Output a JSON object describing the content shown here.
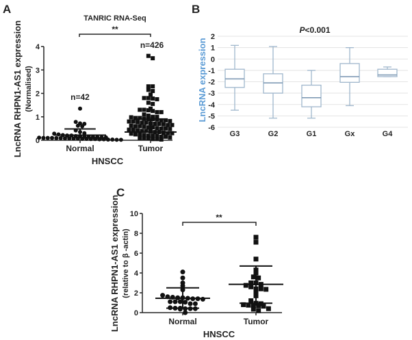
{
  "chart_data": [
    {
      "panel": "A",
      "type": "scatter",
      "title": "TANRIC RNA-Seq",
      "ylabel": "LncRNA RHPN1-AS1 expression",
      "ylabel_sub": "(Normalised)",
      "xlabel": "HNSCC",
      "categories": [
        "Normal",
        "Tumor"
      ],
      "ylim": [
        0,
        4
      ],
      "yticks": [
        "0",
        "1",
        "2",
        "3",
        "4"
      ],
      "significance": "**",
      "group_counts": [
        "n=42",
        "n=426"
      ],
      "marker_shapes": [
        "circle",
        "square"
      ],
      "groups": [
        {
          "name": "Normal",
          "mean": 0.22,
          "sd_upper": 0.48,
          "values": [
            1.35,
            0.78,
            0.72,
            0.7,
            0.62,
            0.6,
            0.42,
            0.35,
            0.3,
            0.28,
            0.25,
            0.22,
            0.2,
            0.2,
            0.18,
            0.17,
            0.15,
            0.15,
            0.14,
            0.13,
            0.12,
            0.12,
            0.11,
            0.1,
            0.1,
            0.1,
            0.09,
            0.09,
            0.08,
            0.08,
            0.07,
            0.07,
            0.06,
            0.06,
            0.05,
            0.05,
            0.04,
            0.04,
            0.03,
            0.03,
            0.02,
            0.02
          ]
        },
        {
          "name": "Tumor",
          "mean": 0.35,
          "sd_upper": 0.9,
          "values": [
            3.6,
            3.5,
            2.3,
            2.3,
            2.15,
            2.1,
            1.95,
            1.8,
            1.8,
            1.78,
            1.75,
            1.6,
            1.55,
            1.35,
            1.3,
            1.3,
            1.28,
            1.25,
            1.2,
            1.2,
            1.1,
            1.05,
            1.0,
            1.0,
            0.98,
            0.95,
            0.95,
            0.92,
            0.9,
            0.9,
            0.88,
            0.85,
            0.85,
            0.82,
            0.8,
            0.8,
            0.78,
            0.75,
            0.75,
            0.72,
            0.7,
            0.7,
            0.68,
            0.65,
            0.65,
            0.62,
            0.6,
            0.6,
            0.58,
            0.55,
            0.55,
            0.52,
            0.5,
            0.5,
            0.48,
            0.45,
            0.45,
            0.42,
            0.4,
            0.4,
            0.38,
            0.35,
            0.35,
            0.32,
            0.3,
            0.3,
            0.28,
            0.25,
            0.25,
            0.22,
            0.2,
            0.2,
            0.18,
            0.15,
            0.15,
            0.12,
            0.1,
            0.1,
            0.08,
            0.05,
            0.05,
            0.03
          ]
        }
      ]
    },
    {
      "panel": "B",
      "type": "box",
      "title": "P<0.001",
      "title_italic_part": "P",
      "title_rest": "<0.001",
      "ylabel": "LncRNA expression",
      "categories": [
        "G3",
        "G2",
        "G1",
        "Gx",
        "G4"
      ],
      "ylim": [
        -6,
        2
      ],
      "yticks": [
        "-6",
        "-5",
        "-4",
        "-3",
        "-2",
        "-1",
        "0",
        "1",
        "2"
      ],
      "grid": true,
      "colors": {
        "box": "#9fb6cc",
        "ylabel": "#5b9bd5"
      },
      "boxes": [
        {
          "name": "G3",
          "min": -4.5,
          "q1": -2.5,
          "median": -1.75,
          "q3": -0.9,
          "max": 1.2
        },
        {
          "name": "G2",
          "min": -5.2,
          "q1": -3.0,
          "median": -2.1,
          "q3": -1.3,
          "max": 1.1
        },
        {
          "name": "G1",
          "min": -5.2,
          "q1": -4.2,
          "median": -3.4,
          "q3": -2.3,
          "max": -1.0
        },
        {
          "name": "Gx",
          "min": -4.1,
          "q1": -2.05,
          "median": -1.55,
          "q3": -0.4,
          "max": 1.0
        },
        {
          "name": "G4",
          "min": -1.55,
          "q1": -1.55,
          "median": -1.4,
          "q3": -0.9,
          "max": -0.7
        }
      ]
    },
    {
      "panel": "C",
      "type": "scatter",
      "ylabel": "LncRNA RHPN1-AS1 expression",
      "ylabel_sub": "(relative to β -actin)",
      "xlabel": "HNSCC",
      "categories": [
        "Normal",
        "Tumor"
      ],
      "ylim": [
        0,
        10
      ],
      "yticks": [
        "0",
        "2",
        "4",
        "6",
        "8",
        "10"
      ],
      "significance": "**",
      "marker_shapes": [
        "circle",
        "square"
      ],
      "groups": [
        {
          "name": "Normal",
          "mean": 1.45,
          "sd_lower": 0.45,
          "sd_upper": 2.5,
          "values": [
            4.1,
            3.5,
            3.0,
            2.7,
            2.3,
            1.75,
            1.6,
            1.55,
            1.5,
            1.5,
            1.45,
            1.4,
            1.4,
            1.35,
            1.1,
            1.1,
            1.1,
            1.05,
            0.9,
            0.9,
            0.5,
            0.45,
            0.45,
            0.4,
            0.4,
            0.4,
            0.35,
            0.0
          ]
        },
        {
          "name": "Tumor",
          "mean": 2.85,
          "sd_lower": 0.95,
          "sd_upper": 4.7,
          "values": [
            7.6,
            7.1,
            5.4,
            4.3,
            4.0,
            3.6,
            3.5,
            3.0,
            3.0,
            2.85,
            2.75,
            2.6,
            2.4,
            2.4,
            2.35,
            2.1,
            1.7,
            1.2,
            0.95,
            0.9,
            0.8,
            0.75,
            0.7,
            0.7,
            0.65,
            0.4,
            0.35,
            0.2
          ]
        }
      ]
    }
  ]
}
